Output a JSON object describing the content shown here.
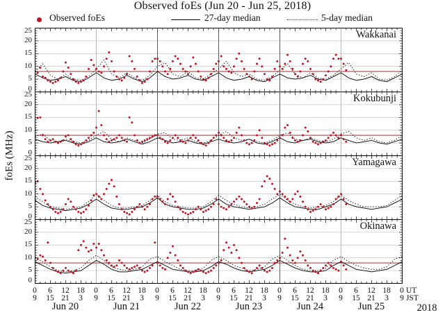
{
  "colors": {
    "observed": "#c01523",
    "threshold": "#b24444",
    "median": "#000000",
    "grid": "#cccccc",
    "dayline_dark": "#5a5a5a",
    "dayline_light": "#b5b5b5",
    "border": "#000000"
  },
  "legend": {
    "observed": "Observed foEs",
    "median27": "27-day median",
    "median5": "5-day median"
  },
  "chart_data": {
    "type": "scatter",
    "title": "Observed foEs (Jun 20 - Jun 25, 2018)",
    "ylabel": "foEs (MHz)",
    "ylim": [
      0,
      25
    ],
    "y_ticks": [
      0,
      5,
      10,
      15,
      20,
      25
    ],
    "x_hours_span": 144,
    "x_day_labels": [
      "Jun 20",
      "Jun 21",
      "Jun 22",
      "Jun 23",
      "Jun 24",
      "Jun 25"
    ],
    "year_label": "2018",
    "ut_tick_labels": [
      "0",
      "6",
      "12",
      "18"
    ],
    "jst_tick_labels": [
      "9",
      "15",
      "21",
      "3"
    ],
    "final_ut": "0",
    "final_jst": "9",
    "ut_suffix": "UT",
    "jst_suffix": "JST",
    "median_step_hours": 3,
    "panels": [
      {
        "station": "Wakkanai",
        "threshold": 8,
        "observed_by_day": [
          [
            8,
            7.5,
            9.5,
            6,
            5.5,
            4.5,
            4,
            3.5,
            4,
            4.5,
            5.5,
            8,
            11.5,
            9.5,
            7,
            5,
            4,
            3.5,
            4,
            4.5,
            6,
            9,
            12.5,
            10.5
          ],
          [
            9,
            8,
            7.5,
            10,
            13,
            15.5,
            12,
            8,
            6,
            5,
            4.5,
            5.5,
            7,
            14,
            12,
            9,
            6,
            4.5,
            3.5,
            4,
            5,
            8,
            12,
            13
          ],
          [
            13,
            12,
            10,
            8,
            7,
            9,
            12,
            14,
            13,
            11,
            9,
            8,
            7,
            10,
            13.5,
            11,
            8,
            6,
            5,
            4.5,
            5.5,
            7,
            9,
            11
          ],
          [
            12,
            14,
            10,
            9,
            8,
            7.5,
            10,
            13,
            15,
            12,
            9,
            7,
            6,
            5,
            8,
            11,
            13,
            10,
            7,
            5,
            4.5,
            6,
            9,
            12
          ],
          [
            10,
            9,
            11,
            14.5,
            12,
            9,
            7,
            6,
            8,
            11,
            13,
            12,
            9,
            7,
            5,
            4.5,
            4,
            5,
            6.5,
            8,
            10,
            13,
            14.5,
            13
          ],
          [
            13,
            11,
            8.5
          ]
        ],
        "median27": [
          7,
          5.5,
          4.5,
          5,
          6,
          4.5,
          4,
          5.5,
          7.5,
          5.5,
          4.5,
          5,
          6.5,
          5,
          4,
          5.5,
          8,
          6,
          5,
          5.5,
          6.5,
          5,
          4.5,
          6,
          7.5,
          5.5,
          4.5,
          5,
          6,
          4.5,
          4,
          5.5,
          7,
          5.5,
          5,
          5.5,
          6.5,
          5,
          4.5,
          6,
          7.5,
          5.5,
          4.5,
          5,
          6,
          4.5,
          4,
          5.5,
          7
        ],
        "median5": [
          8,
          11,
          6.5,
          5,
          7,
          5,
          4.5,
          6,
          9,
          12.5,
          7,
          5.5,
          7.5,
          5.5,
          4.5,
          6.5,
          10,
          11.5,
          7,
          6,
          8,
          5.5,
          5,
          7,
          9,
          12,
          7.5,
          6,
          7,
          5,
          4.5,
          6,
          8.5,
          11,
          7,
          5.5,
          7.5,
          5.5,
          5,
          6.5,
          9,
          11.5,
          7,
          6,
          7.5,
          5,
          4.5,
          6,
          8.5
        ]
      },
      {
        "station": "Kokubunji",
        "threshold": 8,
        "observed_by_day": [
          [
            10,
            14.8,
            15,
            8,
            6.5,
            5.5,
            6,
            6.5,
            5.5,
            5,
            5.5,
            6,
            7.5,
            8,
            6.5,
            5.5,
            4.5,
            4,
            4.5,
            5,
            6,
            7,
            8,
            9
          ],
          [
            11,
            17.5,
            12,
            8,
            6.5,
            5.5,
            6,
            6.5,
            7,
            8,
            7,
            6,
            5.5,
            15,
            13,
            8,
            6,
            5,
            5.5,
            6,
            6.5,
            7,
            7.5,
            8
          ],
          [
            8,
            7,
            6.5,
            5.5,
            5,
            6,
            7,
            8,
            7,
            6,
            5.5,
            5,
            6,
            7,
            8,
            7,
            6,
            5,
            4.5,
            4,
            5,
            6,
            7,
            8
          ],
          [
            9,
            8,
            7,
            6,
            5.5,
            6,
            7,
            9,
            11,
            8,
            6,
            5,
            4.5,
            5,
            6,
            8,
            10,
            7,
            5,
            4.5,
            4,
            4.5,
            5,
            6
          ],
          [
            7,
            8,
            11,
            12,
            9,
            7,
            6,
            5.5,
            6,
            8,
            11,
            9.5,
            7,
            5.5,
            5,
            4.5,
            5,
            5.5,
            6,
            7,
            8,
            9,
            8,
            7
          ],
          [
            8,
            6.5,
            5.5
          ]
        ],
        "median27": [
          6.5,
          5.5,
          5,
          5.5,
          6,
          5,
          4.5,
          5.5,
          7,
          5.5,
          5,
          5.5,
          6.5,
          5.5,
          4.5,
          5.5,
          7,
          6,
          5,
          5.5,
          6,
          5,
          4.5,
          5.5,
          6.5,
          5.5,
          5,
          5.5,
          6.5,
          5,
          4.5,
          5.5,
          7,
          5.5,
          5,
          6,
          6.5,
          5.5,
          5,
          5.5,
          7,
          6,
          5,
          5.5,
          6,
          5,
          4.5,
          5.5,
          6.5
        ],
        "median5": [
          7.5,
          8.5,
          6,
          5.5,
          6.5,
          5.5,
          5,
          6,
          8,
          9.5,
          6.5,
          5.5,
          7,
          6,
          5,
          6.5,
          8.5,
          9,
          6.5,
          6,
          7,
          5.5,
          5,
          6,
          8,
          9.5,
          7,
          6,
          6.5,
          5.5,
          5,
          6,
          8,
          9,
          6.5,
          6,
          7,
          6,
          5.5,
          6.5,
          8.5,
          9.5,
          7,
          6,
          7,
          5.5,
          5,
          6,
          8
        ]
      },
      {
        "station": "Yamagawa",
        "threshold": null,
        "observed_by_day": [
          [
            14.5,
            15,
            12,
            10,
            7.5,
            6,
            5,
            4,
            3,
            2.5,
            3,
            4,
            6,
            8,
            7,
            5,
            4,
            3,
            2.5,
            3,
            4,
            5.5,
            7.5,
            9.5
          ],
          [
            10,
            9,
            8,
            10,
            12,
            14,
            15.5,
            13,
            9,
            6,
            4,
            3,
            2.5,
            2,
            3,
            4,
            5,
            6,
            5,
            4,
            5,
            6,
            8,
            9
          ],
          [
            9,
            8,
            7,
            6,
            8,
            10,
            9,
            7,
            5,
            4,
            3,
            2.5,
            2,
            2.5,
            3,
            4,
            5,
            4,
            3,
            3.5,
            4,
            5,
            6,
            8
          ],
          [
            6,
            5,
            4.5,
            4,
            5,
            6,
            7,
            8,
            9,
            8,
            7,
            6,
            5,
            4.5,
            5,
            6.5,
            8,
            13,
            15,
            17,
            16,
            14,
            12,
            10
          ],
          [
            11,
            10,
            9,
            8,
            7,
            8,
            10,
            11,
            9,
            7,
            5,
            4,
            3,
            3.5,
            4,
            5,
            6,
            5,
            4,
            4.5,
            5,
            6,
            8,
            9
          ],
          [
            10,
            8,
            6
          ]
        ],
        "median27": [
          7.5,
          5.5,
          4.5,
          4,
          3.5,
          4,
          4.5,
          6,
          8,
          6,
          4.5,
          4,
          4,
          4.5,
          5,
          6.5,
          8.5,
          6,
          5,
          4.5,
          4,
          4,
          4.5,
          6,
          8,
          6,
          5,
          4.5,
          4,
          4.5,
          5,
          6.5,
          8.5,
          6.5,
          5,
          4.5,
          4,
          4,
          5,
          6,
          8,
          6,
          5,
          4.5,
          4,
          4.5,
          5,
          6.5,
          8
        ],
        "median5": [
          9,
          7,
          5,
          4.5,
          4,
          4.5,
          5,
          7,
          10,
          7.5,
          5.5,
          4.5,
          4.5,
          5,
          5.5,
          7.5,
          9.5,
          7,
          5.5,
          5,
          4.5,
          4.5,
          5,
          7,
          9.5,
          7.5,
          6,
          5,
          4.5,
          5,
          6,
          8,
          10,
          7.5,
          6,
          5,
          4.5,
          5,
          5.5,
          7,
          9.5,
          7.5,
          6,
          5,
          5,
          5,
          5.5,
          7.5,
          9.5
        ]
      },
      {
        "station": "Okinawa",
        "threshold": 8,
        "observed_by_day": [
          [
            10,
            9.5,
            11,
            10.5,
            9,
            16,
            8,
            6,
            5,
            4.5,
            4,
            5,
            6,
            5,
            4.5,
            4,
            5,
            13,
            15,
            16.5,
            14,
            12.5,
            13,
            15.5
          ],
          [
            14,
            15.5,
            13,
            11,
            9,
            8,
            7,
            6.5,
            7,
            9,
            8,
            7,
            6,
            5.5,
            6,
            6.5,
            7,
            6,
            5,
            4.5,
            5,
            6,
            7,
            16
          ],
          [
            8,
            7,
            6,
            5.5,
            10,
            12,
            14.5,
            11,
            9,
            7,
            6,
            5,
            4.5,
            4,
            4.5,
            5,
            5.5,
            5,
            4.5,
            4,
            4.5,
            5,
            6,
            7
          ],
          [
            8,
            9,
            13,
            16,
            14,
            12,
            15,
            13,
            10,
            8,
            6,
            5,
            4.5,
            4,
            5,
            6,
            7,
            6,
            5,
            4.5,
            5,
            6,
            8,
            9
          ],
          [
            10,
            12,
            17.5,
            14,
            11,
            9,
            8,
            10,
            12.5,
            11,
            9,
            7,
            6,
            5,
            4.5,
            4,
            5,
            6,
            7,
            8,
            7,
            6,
            5.5,
            5
          ],
          [
            8.5,
            7,
            5.5
          ]
        ],
        "median27": [
          8.5,
          7,
          5.5,
          4.5,
          4,
          4.5,
          5,
          7,
          9,
          7.5,
          5.5,
          4.5,
          4.5,
          5,
          5.5,
          7,
          8.5,
          7,
          5.5,
          5,
          4.5,
          4.5,
          5,
          6.5,
          8.5,
          7.5,
          6,
          5,
          4.5,
          5,
          5.5,
          7,
          9,
          7.5,
          6,
          5,
          4.5,
          4.5,
          5,
          7,
          8.5,
          7,
          5.5,
          5,
          4.5,
          5,
          5.5,
          7,
          8.5
        ],
        "median5": [
          10,
          8.5,
          6.5,
          5,
          4.5,
          5,
          6,
          9,
          11,
          9,
          6.5,
          5.5,
          5,
          5.5,
          6.5,
          9.5,
          10.5,
          8.5,
          7,
          5.5,
          5,
          5,
          6,
          9,
          10.5,
          9,
          7,
          6,
          5,
          5.5,
          6.5,
          9.5,
          11,
          9,
          7,
          5.5,
          5,
          5,
          6,
          9,
          10.5,
          8.5,
          7,
          6,
          5.5,
          5.5,
          6.5,
          9.5,
          10.5
        ]
      }
    ]
  }
}
